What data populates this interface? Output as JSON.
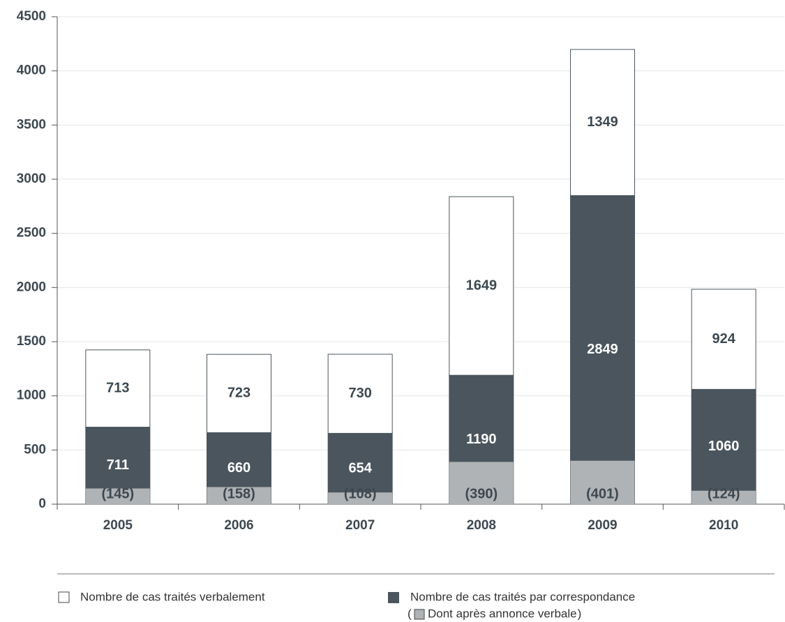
{
  "chart_data": {
    "type": "bar",
    "stacked": true,
    "categories": [
      "2005",
      "2006",
      "2007",
      "2008",
      "2009",
      "2010"
    ],
    "series": [
      {
        "name": "Nombre de cas traités par correspondance",
        "color": "#4a555d",
        "values": [
          711,
          660,
          654,
          1190,
          2849,
          1060
        ]
      },
      {
        "name": "Nombre de cas traités verbalement",
        "color": "#ffffff",
        "values": [
          713,
          723,
          730,
          1649,
          1349,
          924
        ]
      },
      {
        "name": "Dont après annonce verbale",
        "color": "#b0b3b5",
        "overlay_on": 0,
        "values": [
          145,
          158,
          108,
          390,
          401,
          124
        ],
        "value_labels": [
          "(145)",
          "(158)",
          "(108)",
          "(390)",
          "(401)",
          "(124)"
        ]
      }
    ],
    "legend_brackets": [
      "(",
      ")"
    ],
    "ylim": [
      0,
      4500
    ],
    "yticks": [
      0,
      500,
      1000,
      1500,
      2000,
      2500,
      3000,
      3500,
      4000,
      4500
    ],
    "grid": true
  }
}
